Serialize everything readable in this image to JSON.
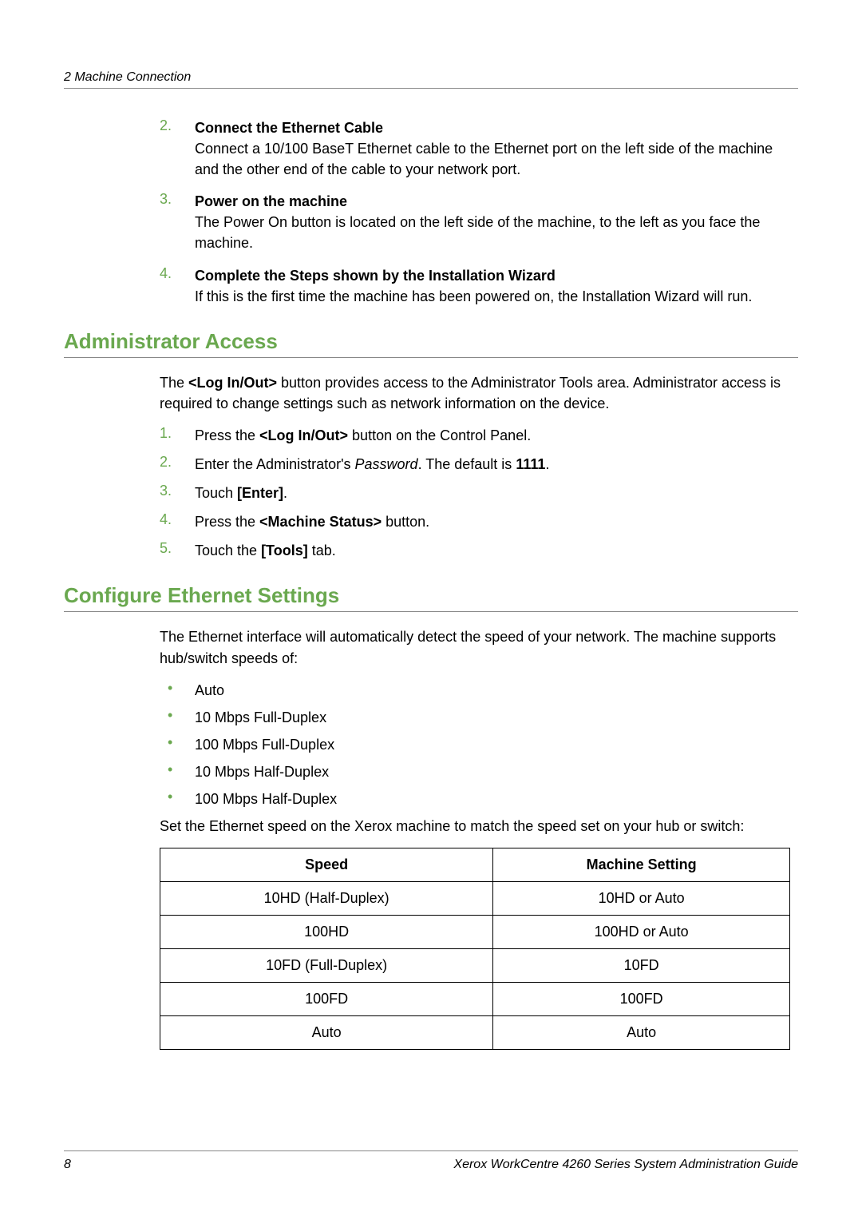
{
  "header": {
    "chapter": "2  Machine Connection"
  },
  "initial_steps": [
    {
      "num": "2.",
      "title": "Connect the Ethernet Cable",
      "text": "Connect a 10/100 BaseT Ethernet cable to the Ethernet port on the left side of the machine and the other end of the cable to your network port."
    },
    {
      "num": "3.",
      "title": "Power on the machine",
      "text": "The Power On button is located on the left side of the machine, to the left as you face the machine."
    },
    {
      "num": "4.",
      "title": "Complete the Steps shown by the Installation Wizard",
      "text": "If this is the first time the machine has been powered on, the Installation Wizard will run."
    }
  ],
  "admin": {
    "heading": "Administrator Access",
    "intro_pre": "The ",
    "intro_bold": "<Log In/Out>",
    "intro_post": " button provides access to the Administrator Tools area. Administrator access is required to change settings such as network information on the device.",
    "steps": [
      {
        "num": "1.",
        "pre": "Press the ",
        "b1": "<Log In/Out>",
        "post": " button on the Control Panel."
      },
      {
        "num": "2.",
        "pre": "Enter the Administrator's ",
        "i1": "Password",
        "mid": ". The default is ",
        "b1": "1111",
        "post": "."
      },
      {
        "num": "3.",
        "pre": "Touch ",
        "b1": "[Enter]",
        "post": "."
      },
      {
        "num": "4.",
        "pre": "Press the ",
        "b1": "<Machine Status>",
        "post": " button."
      },
      {
        "num": "5.",
        "pre": "Touch the ",
        "b1": "[Tools]",
        "post": " tab."
      }
    ]
  },
  "ethernet": {
    "heading": "Configure Ethernet Settings",
    "intro": "The Ethernet interface will automatically detect the speed of your network. The machine supports hub/switch speeds of:",
    "bullets": [
      "Auto",
      "10 Mbps Full-Duplex",
      "100 Mbps Full-Duplex",
      "10 Mbps Half-Duplex",
      "100 Mbps Half-Duplex"
    ],
    "table_intro": "Set the Ethernet speed on the Xerox machine to match the speed set on your hub or switch:",
    "table": {
      "columns": [
        "Speed",
        "Machine Setting"
      ],
      "rows": [
        [
          "10HD (Half-Duplex)",
          "10HD or Auto"
        ],
        [
          "100HD",
          "100HD or Auto"
        ],
        [
          "10FD (Full-Duplex)",
          "10FD"
        ],
        [
          "100FD",
          "100FD"
        ],
        [
          "Auto",
          "Auto"
        ]
      ]
    }
  },
  "footer": {
    "page": "8",
    "title": "Xerox WorkCentre 4260 Series System Administration Guide"
  },
  "colors": {
    "accent": "#6aa84f",
    "rule": "#888888",
    "text": "#000000",
    "background": "#ffffff"
  },
  "typography": {
    "body_fontsize": 18,
    "heading_fontsize": 26,
    "header_fontsize": 16,
    "footer_fontsize": 16
  }
}
